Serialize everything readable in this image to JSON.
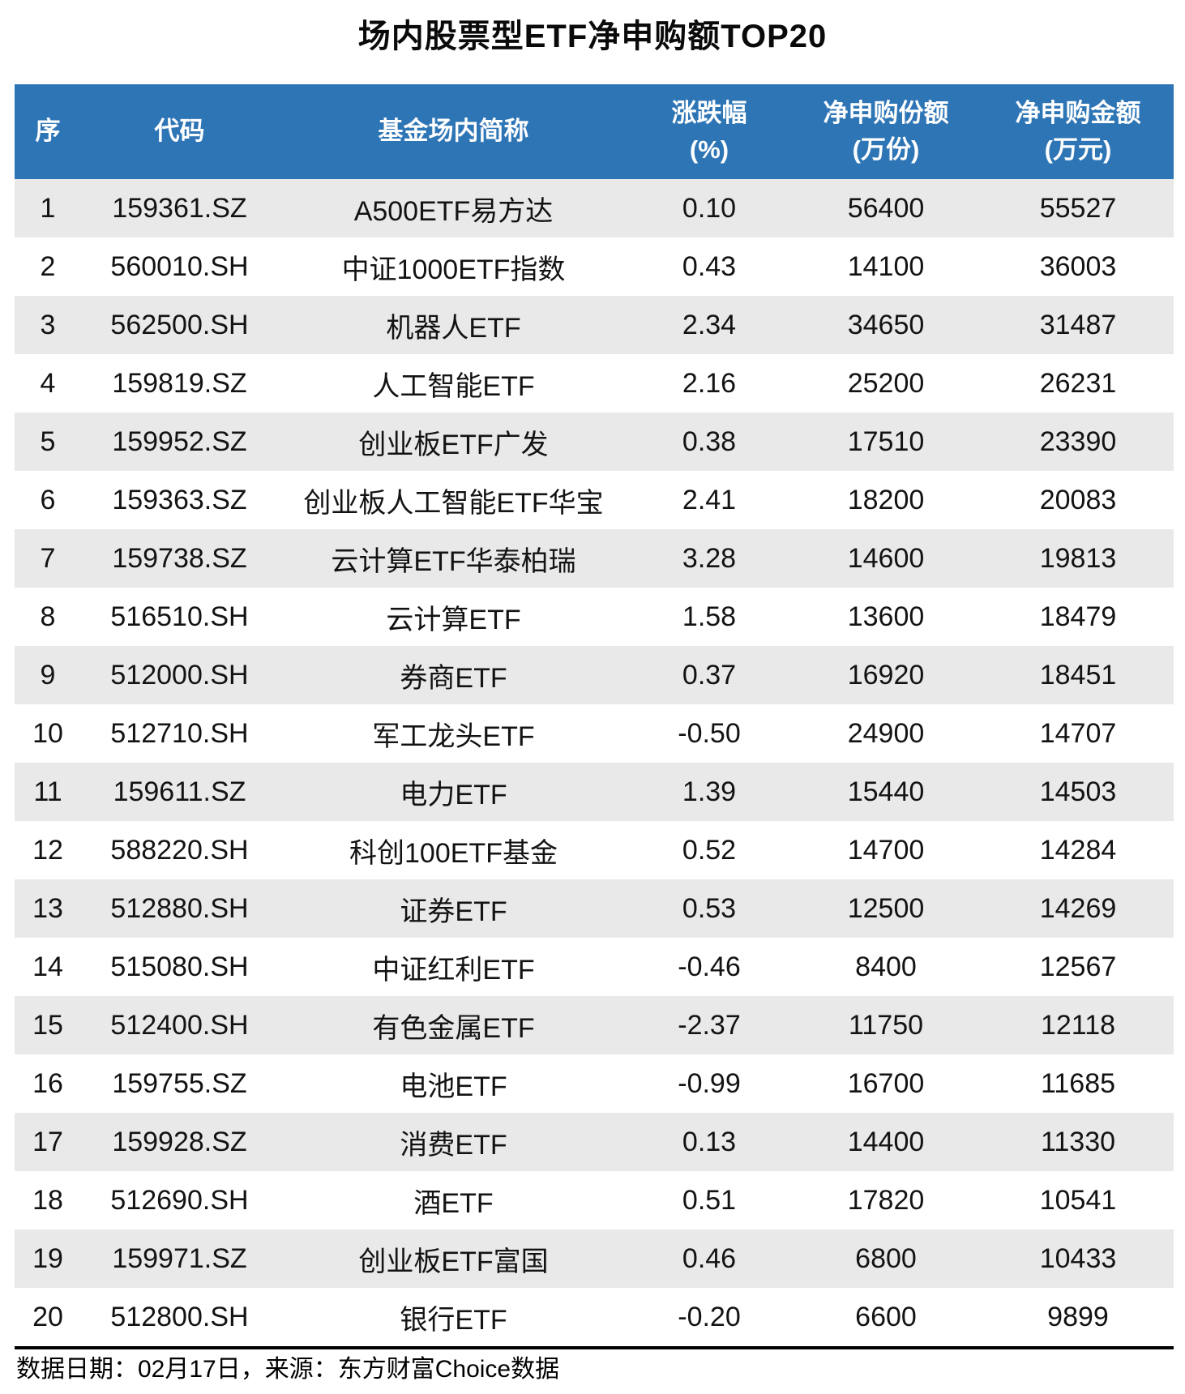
{
  "title": "场内股票型ETF净申购额TOP20",
  "header": {
    "columns": [
      {
        "line1": "序",
        "line2": ""
      },
      {
        "line1": "代码",
        "line2": ""
      },
      {
        "line1": "基金场内简称",
        "line2": ""
      },
      {
        "line1": "涨跌幅",
        "line2": "(%)"
      },
      {
        "line1": "净申购份额",
        "line2": "(万份)"
      },
      {
        "line1": "净申购金额",
        "line2": "(万元)"
      }
    ]
  },
  "chart_data": {
    "type": "table",
    "title": "场内股票型ETF净申购额TOP20",
    "columns": [
      "序",
      "代码",
      "基金场内简称",
      "涨跌幅(%)",
      "净申购份额(万份)",
      "净申购金额(万元)"
    ],
    "rows": [
      [
        "1",
        "159361.SZ",
        "A500ETF易方达",
        "0.10",
        "56400",
        "55527"
      ],
      [
        "2",
        "560010.SH",
        "中证1000ETF指数",
        "0.43",
        "14100",
        "36003"
      ],
      [
        "3",
        "562500.SH",
        "机器人ETF",
        "2.34",
        "34650",
        "31487"
      ],
      [
        "4",
        "159819.SZ",
        "人工智能ETF",
        "2.16",
        "25200",
        "26231"
      ],
      [
        "5",
        "159952.SZ",
        "创业板ETF广发",
        "0.38",
        "17510",
        "23390"
      ],
      [
        "6",
        "159363.SZ",
        "创业板人工智能ETF华宝",
        "2.41",
        "18200",
        "20083"
      ],
      [
        "7",
        "159738.SZ",
        "云计算ETF华泰柏瑞",
        "3.28",
        "14600",
        "19813"
      ],
      [
        "8",
        "516510.SH",
        "云计算ETF",
        "1.58",
        "13600",
        "18479"
      ],
      [
        "9",
        "512000.SH",
        "券商ETF",
        "0.37",
        "16920",
        "18451"
      ],
      [
        "10",
        "512710.SH",
        "军工龙头ETF",
        "-0.50",
        "24900",
        "14707"
      ],
      [
        "11",
        "159611.SZ",
        "电力ETF",
        "1.39",
        "15440",
        "14503"
      ],
      [
        "12",
        "588220.SH",
        "科创100ETF基金",
        "0.52",
        "14700",
        "14284"
      ],
      [
        "13",
        "512880.SH",
        "证券ETF",
        "0.53",
        "12500",
        "14269"
      ],
      [
        "14",
        "515080.SH",
        "中证红利ETF",
        "-0.46",
        "8400",
        "12567"
      ],
      [
        "15",
        "512400.SH",
        "有色金属ETF",
        "-2.37",
        "11750",
        "12118"
      ],
      [
        "16",
        "159755.SZ",
        "电池ETF",
        "-0.99",
        "16700",
        "11685"
      ],
      [
        "17",
        "159928.SZ",
        "消费ETF",
        "0.13",
        "14400",
        "11330"
      ],
      [
        "18",
        "512690.SH",
        "酒ETF",
        "0.51",
        "17820",
        "10541"
      ],
      [
        "19",
        "159971.SZ",
        "创业板ETF富国",
        "0.46",
        "6800",
        "10433"
      ],
      [
        "20",
        "512800.SH",
        "银行ETF",
        "-0.20",
        "6600",
        "9899"
      ]
    ]
  },
  "footer": {
    "note": "数据日期：02月17日，来源：东方财富Choice数据"
  },
  "colors": {
    "header_bg": "#2E75B6",
    "header_text": "#FFFFFF",
    "row_alt_bg": "#E9E9E9",
    "row_bg": "#FFFFFF",
    "body_text": "#131313",
    "divider": "#000000"
  }
}
